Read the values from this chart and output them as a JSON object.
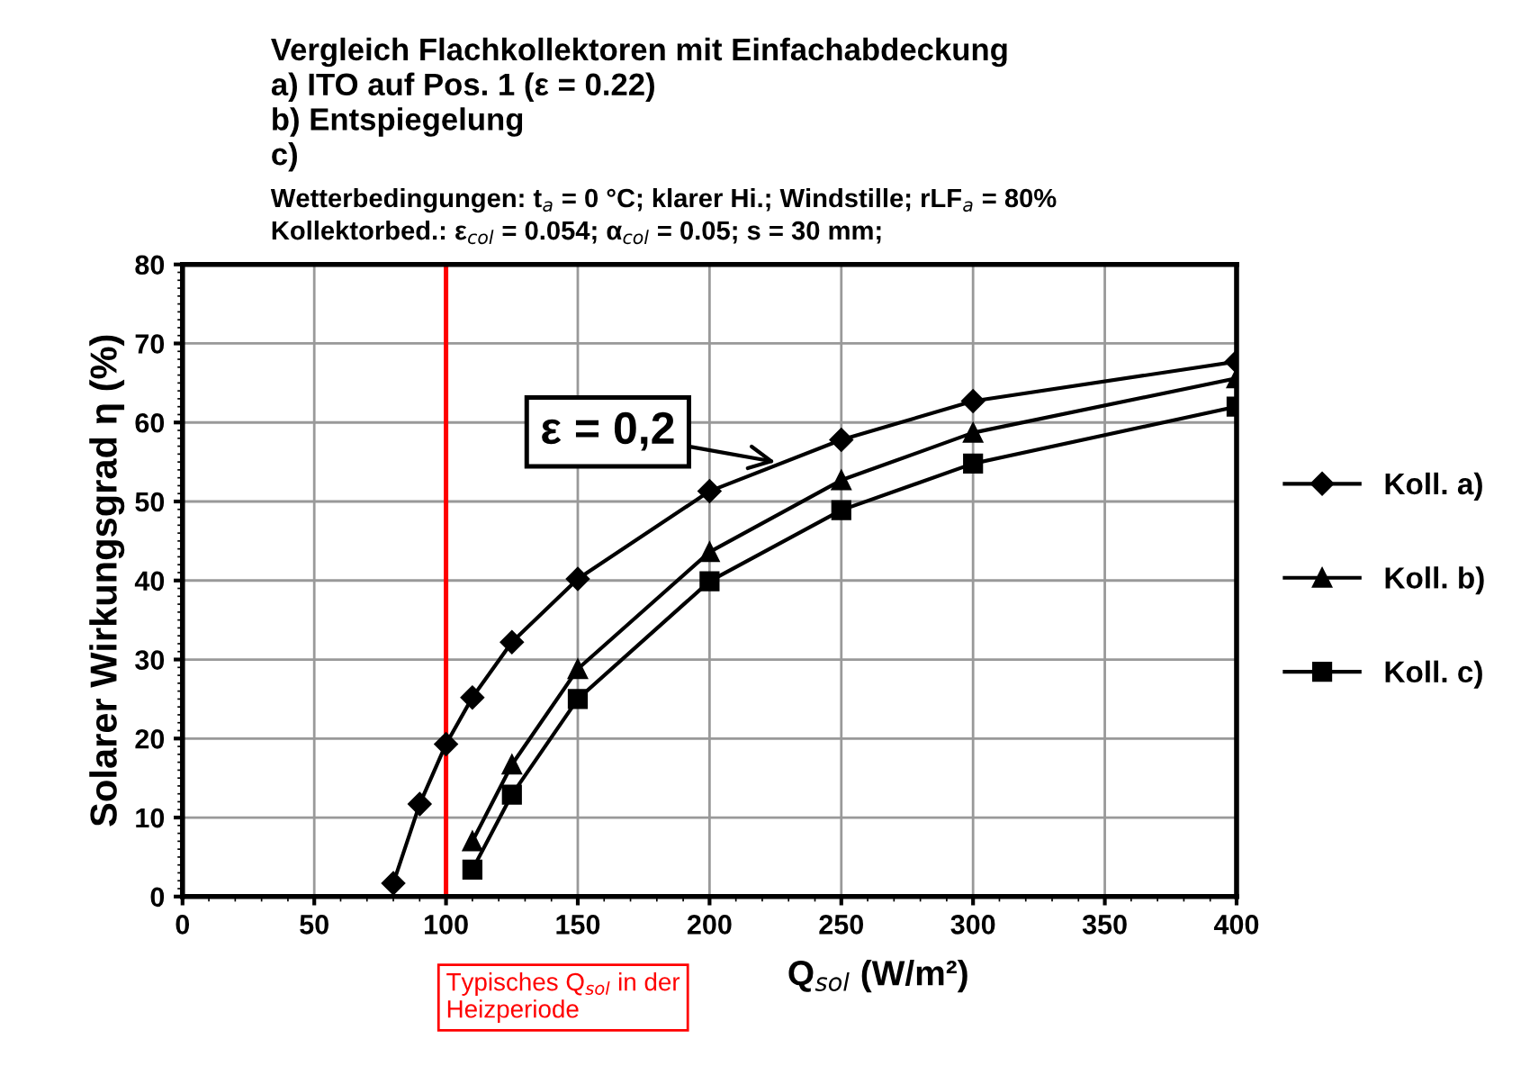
{
  "chart_data": {
    "type": "line",
    "title": "Vergleich Flachkollektoren mit Einfachabdeckung\na) ITO auf Pos. 1 (ε = 0.22)\nb) Entspiegelung\nc)",
    "subtitle": "Wetterbedingungen: t$_{a}$ = 0 °C; klarer Hi.; Windstille; rLF$_{a}$ = 80%\nKollektorbed.: ε$_{col}$ = 0.054; α$_{col}$ = 0.05; s = 30 mm;",
    "xlabel": "Q$_{sol}$ (W/m²)",
    "ylabel": "Solarer Wirkungsgrad η (%)",
    "series": [
      {
        "name": "Koll. a)",
        "color": "#000000",
        "marker": "diamond",
        "x": [
          80,
          90,
          100,
          110,
          125,
          150,
          200,
          250,
          300,
          400
        ],
        "values": [
          1.7,
          11.7,
          19.3,
          25.2,
          32.2,
          40.2,
          51.3,
          57.8,
          62.7,
          67.7
        ]
      },
      {
        "name": "Koll. b)",
        "color": "#000000",
        "marker": "triangle",
        "x": [
          110,
          125,
          150,
          200,
          250,
          300,
          400
        ],
        "values": [
          7,
          16.7,
          28.8,
          43.6,
          52.7,
          58.7,
          65.6
        ]
      },
      {
        "name": "Koll. c)",
        "color": "#000000",
        "marker": "square",
        "x": [
          110,
          125,
          150,
          200,
          250,
          300,
          400
        ],
        "values": [
          3.4,
          12.9,
          25,
          39.9,
          48.9,
          54.8,
          62
        ]
      }
    ],
    "xlim": [
      0,
      400
    ],
    "ylim": [
      0,
      80
    ],
    "xticks": [
      0,
      50,
      100,
      150,
      200,
      250,
      300,
      350,
      400
    ],
    "yticks": [
      0,
      10,
      20,
      30,
      40,
      50,
      60,
      70,
      80
    ],
    "grid": true,
    "legend": "right",
    "line_style": "solid",
    "ref_lines": [
      {
        "axis": "x",
        "value": 100,
        "label": "Typisches Q$_{sol}$ in der\nHeizperiode",
        "color": "#ff0000"
      }
    ],
    "annotations": [
      {
        "text": "ε = 0,2",
        "x": 225,
        "y": 55
      }
    ]
  }
}
